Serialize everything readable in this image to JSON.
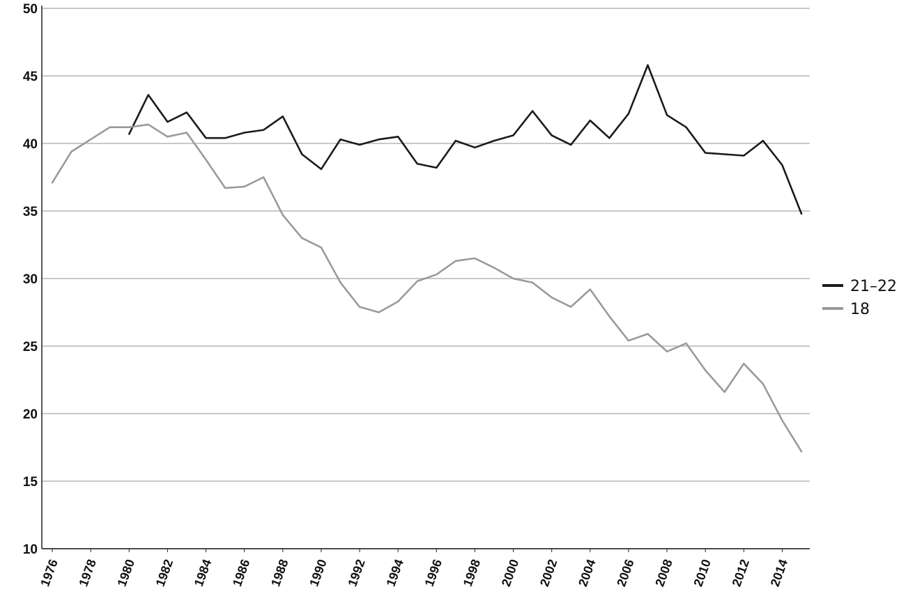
{
  "chart_data": {
    "type": "line",
    "title": "",
    "xlabel": "",
    "ylabel": "",
    "ylim": [
      10,
      50
    ],
    "yticks": [
      "10",
      "15",
      "20",
      "25",
      "30",
      "35",
      "40",
      "45",
      "50"
    ],
    "xlim": [
      1976,
      2015
    ],
    "xticks": [
      "1976",
      "1978",
      "1980",
      "1982",
      "1984",
      "1986",
      "1988",
      "1990",
      "1992",
      "1994",
      "1996",
      "1998",
      "2000",
      "2002",
      "2004",
      "2006",
      "2008",
      "2010",
      "2012",
      "2014"
    ],
    "grid": true,
    "legend_position": "right",
    "series": [
      {
        "name": "21–22",
        "color": "#1a1a1a",
        "x": [
          1980,
          1981,
          1982,
          1983,
          1984,
          1985,
          1986,
          1987,
          1988,
          1989,
          1990,
          1991,
          1992,
          1993,
          1994,
          1995,
          1996,
          1997,
          1998,
          1999,
          2000,
          2001,
          2002,
          2003,
          2004,
          2005,
          2006,
          2007,
          2008,
          2009,
          2010,
          2011,
          2012,
          2013,
          2014,
          2015
        ],
        "values": [
          40.7,
          43.6,
          41.6,
          42.3,
          40.4,
          40.4,
          40.8,
          41.0,
          42.0,
          39.2,
          38.1,
          40.3,
          39.9,
          40.3,
          40.5,
          38.5,
          38.2,
          40.2,
          39.7,
          40.2,
          40.6,
          42.4,
          40.6,
          39.9,
          41.7,
          40.4,
          42.2,
          45.8,
          42.1,
          41.2,
          39.3,
          39.2,
          39.1,
          40.2,
          38.4,
          34.8
        ]
      },
      {
        "name": "18",
        "color": "#9a9a9a",
        "x": [
          1976,
          1977,
          1978,
          1979,
          1980,
          1981,
          1982,
          1983,
          1984,
          1985,
          1986,
          1987,
          1988,
          1989,
          1990,
          1991,
          1992,
          1993,
          1994,
          1995,
          1996,
          1997,
          1998,
          1999,
          2000,
          2001,
          2002,
          2003,
          2004,
          2005,
          2006,
          2007,
          2008,
          2009,
          2010,
          2011,
          2012,
          2013,
          2014,
          2015
        ],
        "values": [
          37.1,
          39.4,
          40.3,
          41.2,
          41.2,
          41.4,
          40.5,
          40.8,
          38.8,
          36.7,
          36.8,
          37.5,
          34.7,
          33.0,
          32.3,
          29.7,
          27.9,
          27.5,
          28.3,
          29.8,
          30.3,
          31.3,
          31.5,
          30.8,
          30.0,
          29.7,
          28.6,
          27.9,
          29.2,
          27.2,
          25.4,
          25.9,
          24.6,
          25.2,
          23.2,
          21.6,
          23.7,
          22.2,
          19.5,
          17.2
        ]
      }
    ]
  }
}
